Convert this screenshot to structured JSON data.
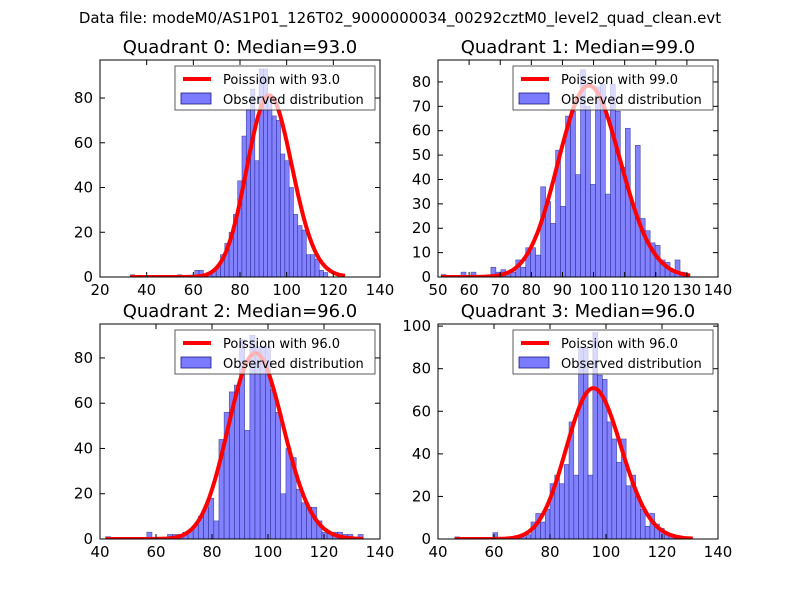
{
  "suptitle": "Data file: modeM0/AS1P01_126T02_9000000034_00292cztM0_level2_quad_clean.evt",
  "colors": {
    "poisson": "#ff0000",
    "hist_fill": "#7b7bff",
    "hist_edge": "#1a1a80"
  },
  "chart_data": [
    {
      "type": "bar",
      "title": "Quadrant 0: Median=93.0",
      "xlim": [
        20,
        140
      ],
      "ylim": [
        0,
        97
      ],
      "xticks": [
        "20",
        "40",
        "60",
        "80",
        "100",
        "120",
        "140"
      ],
      "yticks": [
        "0",
        "20",
        "40",
        "60",
        "80"
      ],
      "legend": {
        "position": "top-right",
        "entries": [
          "Poission with 93.0",
          "Observed distribution"
        ]
      },
      "poisson_mean": 93.0,
      "hist": {
        "bin_start": 33,
        "bin_width": 1.84,
        "values": [
          1,
          0,
          0,
          0,
          0,
          0,
          0,
          0,
          0,
          0,
          0,
          1,
          0,
          0,
          0,
          3,
          3,
          0,
          1,
          3,
          5,
          10,
          15,
          20,
          28,
          43,
          63,
          75,
          84,
          52,
          93,
          93,
          80,
          72,
          70,
          55,
          52,
          40,
          28,
          23,
          21,
          10,
          10,
          8,
          3,
          2,
          0,
          0,
          0,
          0
        ]
      }
    },
    {
      "type": "bar",
      "title": "Quadrant 1: Median=99.0",
      "xlim": [
        50,
        140
      ],
      "ylim": [
        0,
        89
      ],
      "xticks": [
        "50",
        "60",
        "70",
        "80",
        "90",
        "100",
        "110",
        "120",
        "130",
        "140"
      ],
      "yticks": [
        "0",
        "10",
        "20",
        "30",
        "40",
        "50",
        "60",
        "70",
        "80"
      ],
      "legend": {
        "position": "top-right",
        "entries": [
          "Poission with 99.0",
          "Observed distribution"
        ]
      },
      "poisson_mean": 99.0,
      "hist": {
        "bin_start": 51,
        "bin_width": 1.6,
        "values": [
          1,
          0,
          0,
          0,
          2,
          0,
          2,
          0,
          0,
          0,
          4,
          2,
          3,
          1,
          2,
          7,
          4,
          12,
          12,
          9,
          37,
          31,
          22,
          52,
          29,
          66,
          68,
          42,
          85,
          70,
          38,
          78,
          79,
          34,
          79,
          68,
          45,
          61,
          30,
          54,
          24,
          19,
          14,
          13,
          7,
          6,
          3,
          7,
          2,
          1
        ]
      }
    },
    {
      "type": "bar",
      "title": "Quadrant 2: Median=96.0",
      "xlim": [
        40,
        140
      ],
      "ylim": [
        0,
        95
      ],
      "xticks": [
        "40",
        "60",
        "80",
        "100",
        "120",
        "140"
      ],
      "yticks": [
        "0",
        "20",
        "40",
        "60",
        "80"
      ],
      "legend": {
        "position": "top-right",
        "entries": [
          "Poission with 96.0",
          "Observed distribution"
        ]
      },
      "poisson_mean": 96.0,
      "hist": {
        "bin_start": 42,
        "bin_width": 1.84,
        "values": [
          1,
          0,
          0,
          0,
          0,
          0,
          0,
          0,
          3,
          0,
          0,
          0,
          2,
          2,
          2,
          3,
          4,
          6,
          10,
          14,
          18,
          8,
          44,
          56,
          65,
          68,
          88,
          48,
          90,
          85,
          85,
          85,
          66,
          56,
          20,
          40,
          36,
          22,
          16,
          14,
          14,
          8,
          3,
          3,
          3,
          3,
          2,
          2,
          0,
          2
        ]
      }
    },
    {
      "type": "bar",
      "title": "Quadrant 3: Median=96.0",
      "xlim": [
        40,
        140
      ],
      "ylim": [
        0,
        101
      ],
      "xticks": [
        "40",
        "60",
        "80",
        "100",
        "120",
        "140"
      ],
      "yticks": [
        "0",
        "20",
        "40",
        "60",
        "80",
        "100"
      ],
      "legend": {
        "position": "top-right",
        "entries": [
          "Poission with 96.0",
          "Observed distribution"
        ]
      },
      "poisson_mean": 96.0,
      "hist": {
        "bin_start": 46,
        "bin_width": 1.7,
        "values": [
          1,
          0,
          0,
          0,
          0,
          0,
          0,
          0,
          3,
          0,
          0,
          0,
          1,
          1,
          1,
          2,
          8,
          12,
          8,
          14,
          26,
          30,
          26,
          35,
          55,
          30,
          90,
          90,
          30,
          97,
          77,
          75,
          55,
          47,
          36,
          47,
          25,
          30,
          20,
          14,
          6,
          12,
          7,
          5,
          3,
          2,
          1,
          1,
          1,
          0
        ]
      }
    }
  ]
}
